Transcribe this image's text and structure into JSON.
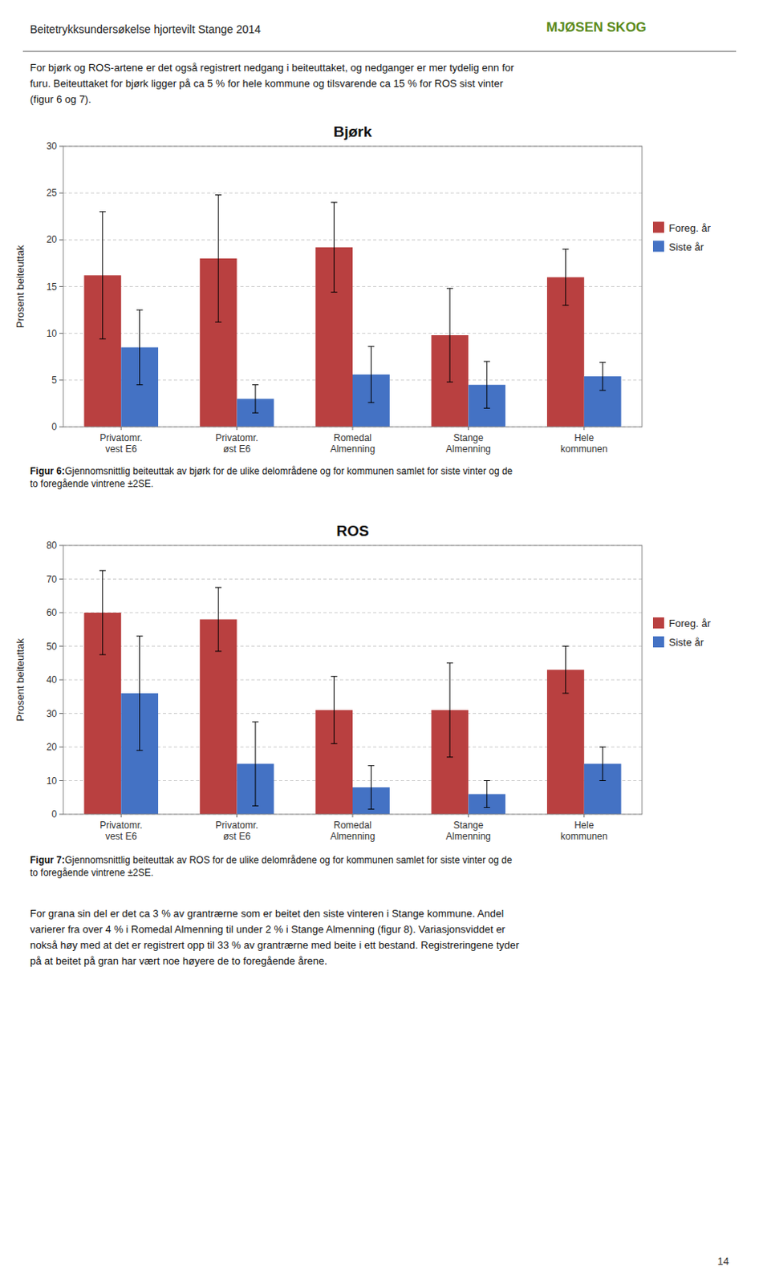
{
  "header_text": "Beitetrykksundersøkelse hjortevilt Stange 2014",
  "logo_text": "MJØSEN SKOG",
  "intro": [
    "For bjørk og ROS-artene er det også registrert nedgang i beiteuttaket, og nedganger er mer tydelig enn for",
    "furu. Beiteuttaket for bjørk ligger på ca 5 % for hele kommune og tilsvarende ca 15 % for ROS sist vinter",
    "(figur 6 og 7)."
  ],
  "captions": [
    {
      "label": "Figur 6:",
      "text": " Gjennomsnittlig beiteuttak av bjørk for de ulike delområdene og for kommunen samlet for siste vinter og de\nto foregående vintrene ±2SE."
    },
    {
      "label": "Figur 7:",
      "text": " Gjennomsnittlig beiteuttak av ROS for de ulike delområdene og for kommunen samlet for siste vinter og de\nto foregående vintrene ±2SE."
    }
  ],
  "outro": [
    "For grana sin del er det ca 3 % av grantrærne som er beitet den siste vinteren i Stange kommune. Andel",
    "varierer fra over 4 % i Romedal Almenning til under 2 % i Stange Almenning (figur 8). Variasjonsviddet er",
    "nokså høy med at det er registrert opp til 33 % av grantrærne med beite i ett bestand. Registreringene tyder",
    "på at beitet på gran har vært noe høyere de to foregående årene."
  ],
  "page_number": "14",
  "chart_data": [
    {
      "type": "bar",
      "title": "Bjørk",
      "y_label": "Prosent beiteuttak",
      "categories": [
        "Privatomr.\nvest E6",
        "Privatomr.\nøst E6",
        "Romedal\nAlmenning",
        "Stange\nAlmenning",
        "Hele\nkommunen"
      ],
      "series": [
        {
          "name": "Foreg. år",
          "color": "#B94040",
          "values": [
            16.2,
            18.0,
            19.2,
            9.8,
            16.0
          ],
          "errors": [
            6.8,
            6.8,
            4.8,
            5.0,
            3.0
          ]
        },
        {
          "name": "Siste år",
          "color": "#4472C4",
          "values": [
            8.5,
            3.0,
            5.6,
            4.5,
            5.4
          ],
          "errors": [
            4.0,
            1.5,
            3.0,
            2.5,
            1.5
          ]
        }
      ],
      "ylim": [
        0,
        30
      ],
      "yticks": [
        0,
        5,
        10,
        15,
        20,
        25,
        30
      ],
      "grid": true,
      "legend": "right"
    },
    {
      "type": "bar",
      "title": "ROS",
      "y_label": "Prosent beiteuttak",
      "categories": [
        "Privatomr.\nvest E6",
        "Privatomr.\nøst E6",
        "Romedal\nAlmenning",
        "Stange\nAlmenning",
        "Hele\nkommunen"
      ],
      "series": [
        {
          "name": "Foreg. år",
          "color": "#B94040",
          "values": [
            60.0,
            58.0,
            31.0,
            31.0,
            43.0
          ],
          "errors": [
            12.5,
            9.5,
            10.0,
            14.0,
            7.0
          ]
        },
        {
          "name": "Siste år",
          "color": "#4472C4",
          "values": [
            36.0,
            15.0,
            8.0,
            6.0,
            15.0
          ],
          "errors": [
            17.0,
            12.5,
            6.5,
            4.0,
            5.0
          ]
        }
      ],
      "ylim": [
        0,
        80
      ],
      "yticks": [
        0,
        10,
        20,
        30,
        40,
        50,
        60,
        70,
        80
      ],
      "grid": true,
      "legend": "right"
    }
  ]
}
